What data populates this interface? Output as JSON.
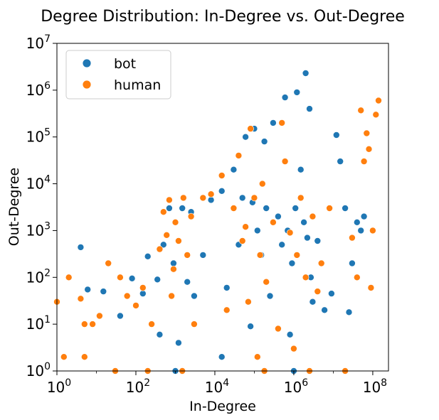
{
  "chart_data": {
    "type": "scatter",
    "title": "Degree Distribution: In-Degree vs. Out-Degree",
    "xlabel": "In-Degree",
    "ylabel": "Out-Degree",
    "xscale": "log",
    "yscale": "log",
    "xlim": [
      1,
      250000000
    ],
    "ylim": [
      1,
      10000000
    ],
    "grid": false,
    "legend": {
      "placement": "upper-left"
    },
    "x_ticks": [
      {
        "value": 1,
        "base": "10",
        "exp": "0"
      },
      {
        "value": 100,
        "base": "10",
        "exp": "2"
      },
      {
        "value": 10000,
        "base": "10",
        "exp": "4"
      },
      {
        "value": 1000000,
        "base": "10",
        "exp": "6"
      },
      {
        "value": 100000000,
        "base": "10",
        "exp": "8"
      }
    ],
    "y_ticks": [
      {
        "value": 1,
        "base": "10",
        "exp": "0"
      },
      {
        "value": 10,
        "base": "10",
        "exp": "1"
      },
      {
        "value": 100,
        "base": "10",
        "exp": "2"
      },
      {
        "value": 1000,
        "base": "10",
        "exp": "3"
      },
      {
        "value": 10000,
        "base": "10",
        "exp": "4"
      },
      {
        "value": 100000,
        "base": "10",
        "exp": "5"
      },
      {
        "value": 1000000,
        "base": "10",
        "exp": "6"
      },
      {
        "value": 10000000,
        "base": "10",
        "exp": "7"
      }
    ],
    "series": [
      {
        "name": "bot",
        "color": "#1f77b4",
        "points": [
          [
            4,
            440
          ],
          [
            6,
            55
          ],
          [
            15,
            50
          ],
          [
            40,
            15
          ],
          [
            80,
            95
          ],
          [
            150,
            45
          ],
          [
            200,
            280
          ],
          [
            350,
            90
          ],
          [
            400,
            6
          ],
          [
            500,
            500
          ],
          [
            700,
            3000
          ],
          [
            900,
            200
          ],
          [
            1000,
            1
          ],
          [
            1200,
            4
          ],
          [
            1500,
            3000
          ],
          [
            2000,
            80
          ],
          [
            2500,
            2500
          ],
          [
            3000,
            40
          ],
          [
            5000,
            300
          ],
          [
            8000,
            4500
          ],
          [
            15000,
            2
          ],
          [
            15000,
            7000
          ],
          [
            20000,
            60
          ],
          [
            30000,
            20000
          ],
          [
            40000,
            500
          ],
          [
            50000,
            5000
          ],
          [
            60000,
            100000
          ],
          [
            80000,
            9
          ],
          [
            90000,
            4000
          ],
          [
            100000,
            150000
          ],
          [
            120000,
            1000
          ],
          [
            150000,
            300
          ],
          [
            180000,
            80000
          ],
          [
            200000,
            3000
          ],
          [
            250000,
            40
          ],
          [
            300000,
            200000
          ],
          [
            400000,
            2000
          ],
          [
            500000,
            500
          ],
          [
            600000,
            700000
          ],
          [
            700000,
            1000
          ],
          [
            800000,
            6
          ],
          [
            900000,
            200
          ],
          [
            1000000,
            1
          ],
          [
            1100000,
            3000
          ],
          [
            1200000,
            900000
          ],
          [
            1500000,
            20000
          ],
          [
            1800000,
            1500
          ],
          [
            2000000,
            2300000
          ],
          [
            2200000,
            700
          ],
          [
            2500000,
            400000
          ],
          [
            2700000,
            100
          ],
          [
            3000000,
            30
          ],
          [
            4000000,
            600
          ],
          [
            6000000,
            20
          ],
          [
            9000000,
            45
          ],
          [
            12000000,
            110000
          ],
          [
            15000000,
            30000
          ],
          [
            20000000,
            3000
          ],
          [
            25000000,
            18
          ],
          [
            30000000,
            200
          ],
          [
            40000000,
            1500
          ],
          [
            50000000,
            1000
          ],
          [
            60000000,
            2000
          ]
        ]
      },
      {
        "name": "human",
        "color": "#ff7f0e",
        "points": [
          [
            1,
            30
          ],
          [
            1.5,
            2
          ],
          [
            2,
            100
          ],
          [
            4,
            35
          ],
          [
            5,
            2
          ],
          [
            5,
            10
          ],
          [
            8,
            10
          ],
          [
            12,
            15
          ],
          [
            20,
            200
          ],
          [
            30,
            1
          ],
          [
            40,
            100
          ],
          [
            60,
            40
          ],
          [
            100,
            25
          ],
          [
            150,
            60
          ],
          [
            200,
            1
          ],
          [
            250,
            10
          ],
          [
            400,
            400
          ],
          [
            500,
            2500
          ],
          [
            600,
            800
          ],
          [
            700,
            4500
          ],
          [
            800,
            40
          ],
          [
            900,
            150
          ],
          [
            1000,
            1500
          ],
          [
            1200,
            600
          ],
          [
            1500,
            1
          ],
          [
            1600,
            5000
          ],
          [
            2000,
            300
          ],
          [
            2500,
            2000
          ],
          [
            3000,
            10
          ],
          [
            5000,
            5000
          ],
          [
            8000,
            6000
          ],
          [
            15000,
            15000
          ],
          [
            20000,
            20
          ],
          [
            30000,
            3000
          ],
          [
            40000,
            40000
          ],
          [
            50000,
            600
          ],
          [
            60000,
            1200
          ],
          [
            70000,
            30
          ],
          [
            80000,
            150000
          ],
          [
            100000,
            5000
          ],
          [
            120000,
            2
          ],
          [
            140000,
            300
          ],
          [
            160000,
            10000
          ],
          [
            180000,
            1
          ],
          [
            200000,
            80
          ],
          [
            300000,
            1500
          ],
          [
            400000,
            8
          ],
          [
            500000,
            200000
          ],
          [
            600000,
            30000
          ],
          [
            800000,
            900
          ],
          [
            1000000,
            3
          ],
          [
            1200000,
            300
          ],
          [
            1500000,
            5000
          ],
          [
            2000000,
            100
          ],
          [
            2500000,
            1
          ],
          [
            3000000,
            2000
          ],
          [
            4000000,
            50
          ],
          [
            5000000,
            200
          ],
          [
            8000000,
            3000
          ],
          [
            20000000,
            1
          ],
          [
            30000000,
            700
          ],
          [
            40000000,
            100
          ],
          [
            50000000,
            370000
          ],
          [
            60000000,
            30000
          ],
          [
            70000000,
            120000
          ],
          [
            80000000,
            55000
          ],
          [
            90000000,
            60
          ],
          [
            100000000,
            1000
          ],
          [
            120000000,
            300000
          ],
          [
            140000000,
            600000
          ]
        ]
      }
    ]
  }
}
